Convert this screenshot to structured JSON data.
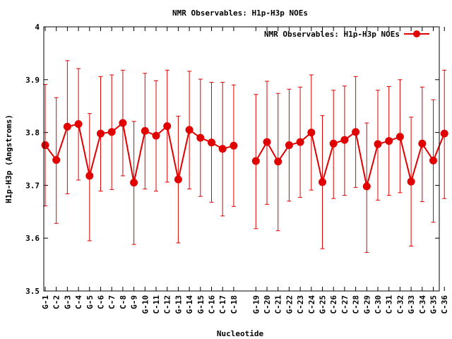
{
  "chart_data": {
    "type": "line",
    "title": "NMR Observables: H1p-H3p NOEs",
    "xlabel": "Nucleotide",
    "ylabel": "H1p-H3p (Angstroms)",
    "ylim": [
      3.5,
      4.0
    ],
    "yticks": [
      "3.5",
      "3.6",
      "3.7",
      "3.8",
      "3.9",
      "4"
    ],
    "grid": false,
    "legend_position": "top-right",
    "color": "#e00000",
    "categories": [
      "G-1",
      "C-2",
      "G-3",
      "C-4",
      "G-5",
      "C-6",
      "C-7",
      "C-8",
      "G-9",
      "G-10",
      "C-11",
      "C-12",
      "G-13",
      "G-14",
      "G-15",
      "C-16",
      "C-17",
      "C-18",
      "G-19",
      "C-20",
      "C-21",
      "G-22",
      "C-23",
      "C-24",
      "G-25",
      "C-26",
      "C-27",
      "C-28",
      "G-29",
      "C-30",
      "C-31",
      "C-32",
      "G-33",
      "C-34",
      "G-35",
      "C-36"
    ],
    "series": [
      {
        "name": "NMR Observables: H1p-H3p NOEs",
        "segments": [
          [
            0,
            17
          ],
          [
            18,
            35
          ]
        ],
        "values": [
          3.776,
          3.748,
          3.811,
          3.816,
          3.718,
          3.798,
          3.801,
          3.818,
          3.705,
          3.803,
          3.794,
          3.812,
          3.711,
          3.805,
          3.79,
          3.781,
          3.769,
          3.775,
          3.746,
          3.782,
          3.745,
          3.776,
          3.782,
          3.8,
          3.706,
          3.779,
          3.786,
          3.801,
          3.698,
          3.778,
          3.784,
          3.792,
          3.707,
          3.779,
          3.747,
          3.798
        ],
        "err_low": [
          3.661,
          3.628,
          3.684,
          3.71,
          3.595,
          3.689,
          3.692,
          3.718,
          3.588,
          3.693,
          3.689,
          3.706,
          3.591,
          3.693,
          3.679,
          3.668,
          3.642,
          3.66,
          3.618,
          3.664,
          3.614,
          3.67,
          3.677,
          3.691,
          3.58,
          3.675,
          3.681,
          3.696,
          3.573,
          3.672,
          3.681,
          3.686,
          3.585,
          3.669,
          3.63,
          3.675
        ],
        "err_high": [
          3.891,
          3.866,
          3.936,
          3.921,
          3.836,
          3.906,
          3.909,
          3.918,
          3.821,
          3.912,
          3.898,
          3.918,
          3.831,
          3.916,
          3.901,
          3.895,
          3.895,
          3.89,
          3.872,
          3.897,
          3.874,
          3.882,
          3.886,
          3.909,
          3.832,
          3.88,
          3.888,
          3.906,
          3.818,
          3.88,
          3.887,
          3.9,
          3.829,
          3.886,
          3.862,
          3.918
        ]
      }
    ]
  }
}
